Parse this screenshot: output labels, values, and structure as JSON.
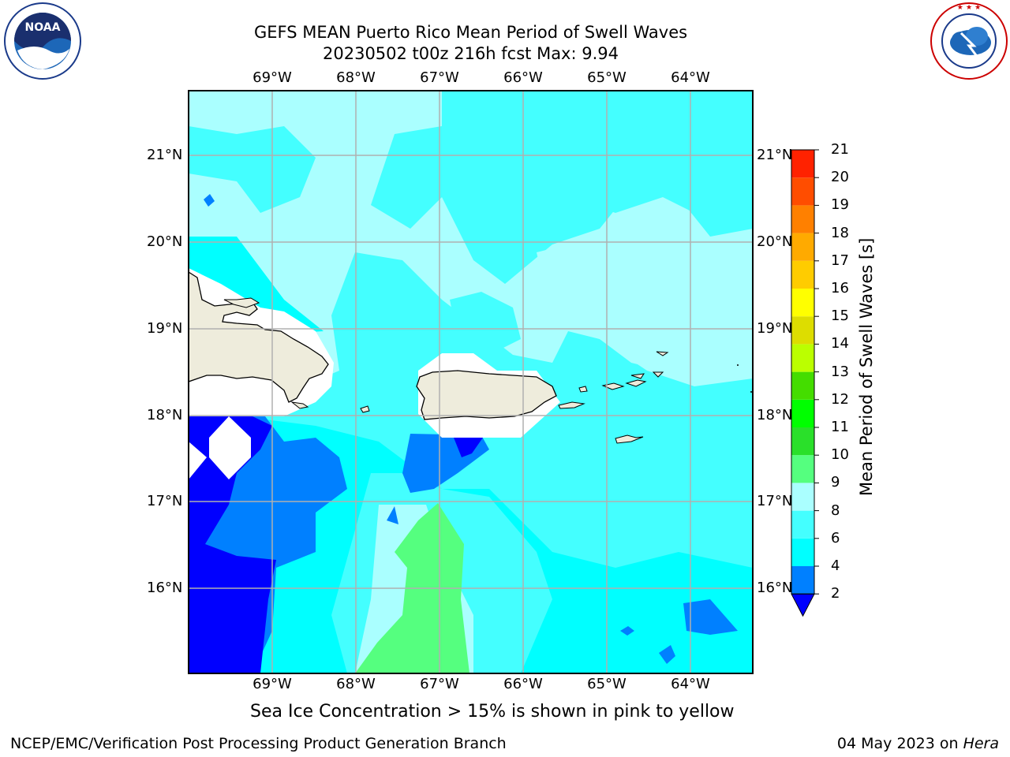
{
  "header": {
    "title_line1": "GEFS MEAN Puerto Rico Mean Period of Swell Waves",
    "title_line2": "20230502 t00z 216h fcst   Max: 9.94"
  },
  "logos": {
    "noaa_text": "NOAA",
    "noaa_ring": "NATIONAL OCEANIC AND ATMOSPHERIC ADMINISTRATION • U.S. DEPARTMENT OF COMMERCE",
    "nws_ring": "NATIONAL WEATHER SERVICE"
  },
  "map": {
    "lon_labels": [
      "69°W",
      "68°W",
      "67°W",
      "66°W",
      "65°W",
      "64°W"
    ],
    "lat_labels": [
      "21°N",
      "20°N",
      "19°N",
      "18°N",
      "17°N",
      "16°N"
    ],
    "colors": {
      "land": "#eeecdc",
      "coast": "#000000",
      "grid": "#b0b0b0",
      "no_data": "#ffffff"
    }
  },
  "colorbar": {
    "title": "Mean Period of Swell Waves [s]",
    "tick_labels": [
      "2",
      "4",
      "6",
      "8",
      "9",
      "10",
      "11",
      "12",
      "13",
      "14",
      "15",
      "16",
      "17",
      "18",
      "19",
      "20",
      "21"
    ],
    "colors": [
      "#0000ff",
      "#0080ff",
      "#00ffff",
      "#44ffff",
      "#aaffff",
      "#55ff7f",
      "#2ae02a",
      "#00ff00",
      "#44dd00",
      "#bbff00",
      "#dddd00",
      "#ffff00",
      "#ffcc00",
      "#ffaa00",
      "#ff8000",
      "#ff4d00",
      "#ff2200",
      "#ff0000"
    ]
  },
  "caption": "Sea Ice Concentration > 15% is shown in pink to yellow",
  "footer": {
    "left": "NCEP/EMC/Verification Post Processing Product Generation Branch",
    "date": "04 May 2023 on ",
    "machine": "Hera"
  }
}
